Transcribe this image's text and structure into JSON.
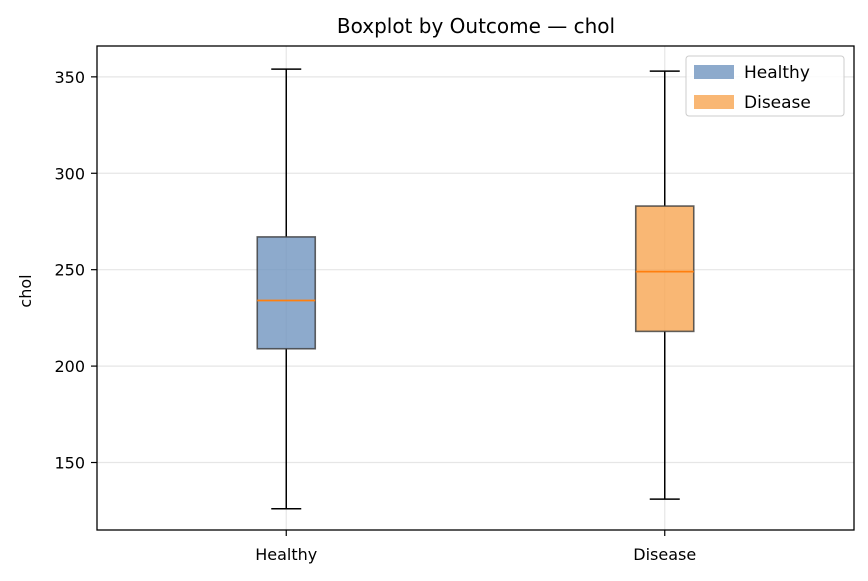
{
  "chart_data": {
    "type": "box",
    "title": "Boxplot by Outcome — chol",
    "xlabel": "",
    "ylabel": "chol",
    "categories": [
      "Healthy",
      "Disease"
    ],
    "series": [
      {
        "name": "Healthy",
        "color": "#7195BF",
        "whisker_low": 126,
        "q1": 209,
        "median": 234,
        "q3": 267,
        "whisker_high": 354
      },
      {
        "name": "Disease",
        "color": "#F8A551",
        "whisker_low": 131,
        "q1": 218,
        "median": 249,
        "q3": 283,
        "whisker_high": 353
      }
    ],
    "median_color": "#FF7F0E",
    "ylim": [
      115,
      366
    ],
    "yticks": [
      150,
      200,
      250,
      300,
      350
    ],
    "grid": true,
    "legend_position": "top-right"
  }
}
